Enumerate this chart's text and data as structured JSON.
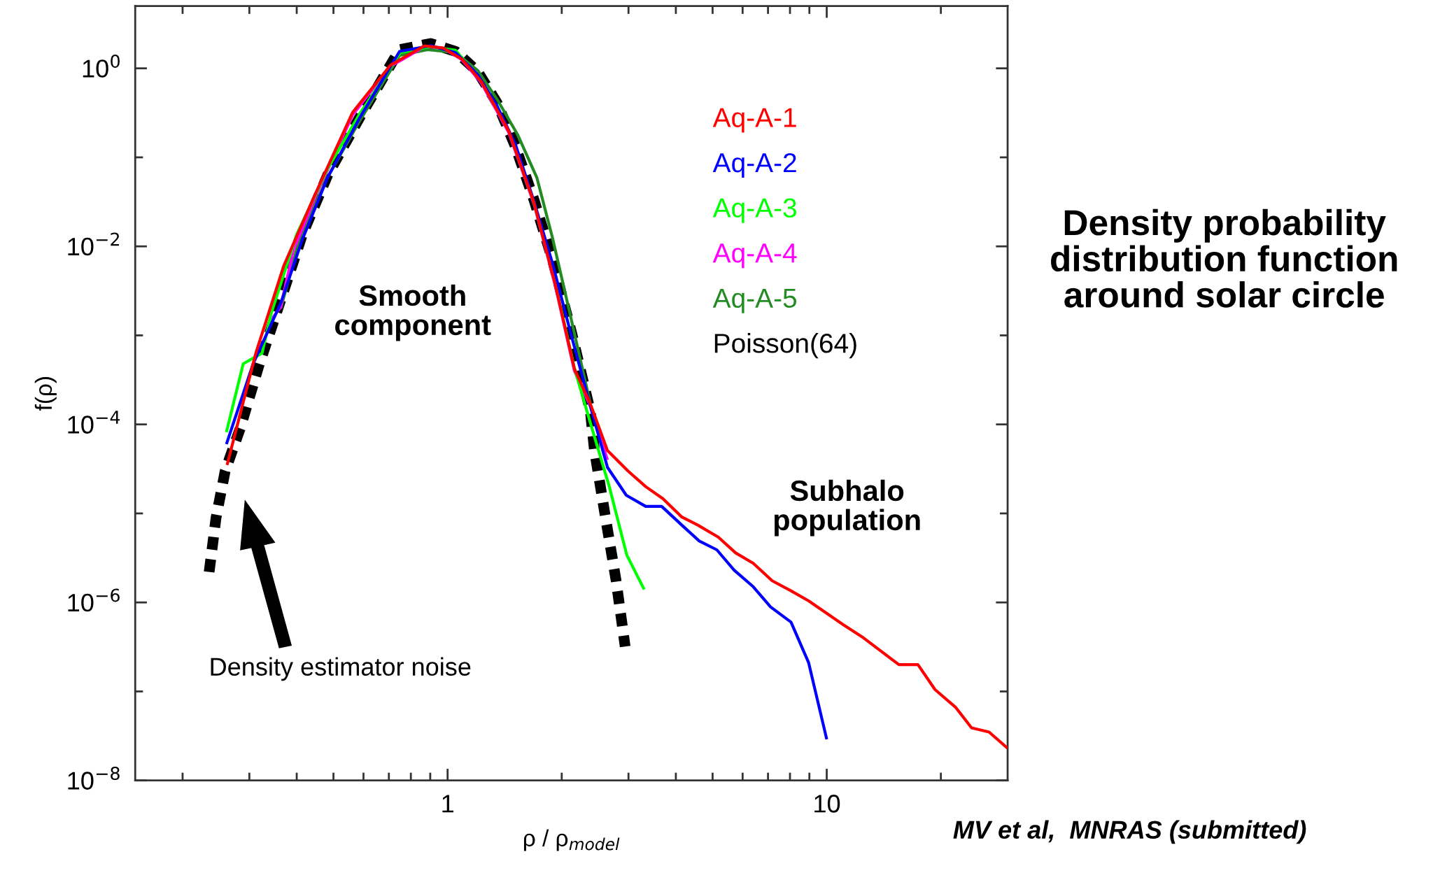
{
  "chart_data": {
    "type": "line",
    "title": "Density probability\ndistribution function\naround solar circle",
    "xlabel": "ρ / ρ$_{model}$",
    "ylabel": "f(ρ)",
    "log": "xy",
    "grid": false,
    "legend": "top right",
    "marker": "none",
    "xlim": [
      0.15,
      30
    ],
    "ylim": [
      1e-08,
      5
    ],
    "xticks": [
      {
        "value": 0.2,
        "label": null
      },
      {
        "value": 0.3,
        "label": null
      },
      {
        "value": 0.4,
        "label": null
      },
      {
        "value": 0.5,
        "label": null
      },
      {
        "value": 0.6,
        "label": null
      },
      {
        "value": 0.7,
        "label": null
      },
      {
        "value": 0.8,
        "label": null
      },
      {
        "value": 0.9,
        "label": null
      },
      1,
      {
        "value": 2,
        "label": null
      },
      {
        "value": 3,
        "label": null
      },
      {
        "value": 4,
        "label": null
      },
      {
        "value": 5,
        "label": null
      },
      {
        "value": 6,
        "label": null
      },
      {
        "value": 7,
        "label": null
      },
      {
        "value": 8,
        "label": null
      },
      {
        "value": 9,
        "label": null
      },
      10,
      {
        "value": 20,
        "label": null
      }
    ],
    "yticks": [
      {
        "value": 1e-08,
        "label": "10$^{−8}$"
      },
      {
        "value": 1e-07,
        "label": null
      },
      {
        "value": 1e-06,
        "label": "10$^{−6}$"
      },
      {
        "value": 1e-05,
        "label": null
      },
      {
        "value": 0.0001,
        "label": "10$^{−4}$"
      },
      {
        "value": 0.001,
        "label": null
      },
      {
        "value": 0.01,
        "label": "10$^{−2}$"
      },
      {
        "value": 0.1,
        "label": null
      },
      {
        "value": 1,
        "label": "10$^{0}$"
      }
    ],
    "series": [
      {
        "name": "Aq-A-1",
        "color": "#ff0000",
        "line_style": "solid",
        "x": [
          0.262,
          0.312,
          0.37,
          0.448,
          0.562,
          0.706,
          0.869,
          0.975,
          1.09,
          1.224,
          1.45,
          1.69,
          1.93,
          2.16,
          2.38,
          2.64,
          2.99,
          3.33,
          3.7,
          4.15,
          4.57,
          5.18,
          5.75,
          6.4,
          7.18,
          8.05,
          8.96,
          11.07,
          12.5,
          15.5,
          17.4,
          19.3,
          21.9,
          24.1,
          26.8,
          30
        ],
        "values": [
          3.5e-05,
          0.00063,
          0.0061,
          0.039,
          0.321,
          1.08,
          1.79,
          1.69,
          1.27,
          0.72,
          0.197,
          0.031,
          0.0035,
          0.00042,
          0.00017,
          5.1e-05,
          3e-05,
          2e-05,
          1.46e-05,
          9.1e-06,
          7.4e-06,
          5.4e-06,
          3.6e-06,
          2.75e-06,
          1.75e-06,
          1.35e-06,
          1.04e-06,
          5.6e-07,
          4e-07,
          2e-07,
          2e-07,
          1.05e-07,
          6.6e-08,
          3.9e-08,
          3.5e-08,
          2.3e-08
        ]
      },
      {
        "name": "Aq-A-2",
        "color": "#0000ff",
        "line_style": "solid",
        "x": [
          0.261,
          0.307,
          0.363,
          0.414,
          0.483,
          0.584,
          0.747,
          0.903,
          1.05,
          1.2,
          1.35,
          1.51,
          1.69,
          1.89,
          2.12,
          2.38,
          2.64,
          2.96,
          3.33,
          3.67,
          4.19,
          4.61,
          5.13,
          5.7,
          6.4,
          7.11,
          8.05,
          8.96,
          10.0
        ],
        "values": [
          6e-05,
          0.00048,
          0.0023,
          0.012,
          0.06,
          0.27,
          1.55,
          1.8,
          1.5,
          0.85,
          0.38,
          0.14,
          0.032,
          0.0065,
          0.001,
          0.00016,
          3.3e-05,
          1.6e-05,
          1.2e-05,
          1.2e-05,
          7.1e-06,
          4.9e-06,
          3.9e-06,
          2.3e-06,
          1.5e-06,
          8.9e-07,
          6e-07,
          2.1e-07,
          2.9e-08
        ]
      },
      {
        "name": "Aq-A-3",
        "color": "#00ff00",
        "line_style": "solid",
        "x": [
          0.261,
          0.289,
          0.324,
          0.343,
          0.4,
          0.483,
          0.584,
          0.75,
          0.9,
          1.05,
          1.22,
          1.45,
          1.69,
          1.93,
          2.16,
          2.39,
          2.67,
          2.97,
          3.3
        ],
        "values": [
          8.2e-05,
          0.00048,
          0.00063,
          0.0018,
          0.0136,
          0.075,
          0.3,
          1.5,
          1.75,
          1.6,
          0.74,
          0.2,
          0.031,
          0.0036,
          0.00043,
          9.8e-05,
          2e-05,
          3.4e-06,
          1.4e-06
        ]
      },
      {
        "name": "Aq-A-4",
        "color": "#ff00ff",
        "line_style": "solid",
        "x": [
          0.343,
          0.363,
          0.392,
          0.448,
          0.562,
          0.706,
          0.869,
          0.975,
          1.09,
          1.224,
          1.45,
          1.69,
          1.93,
          2.16,
          2.38,
          2.64
        ],
        "values": [
          0.0015,
          0.0021,
          0.0091,
          0.036,
          0.3,
          1.05,
          1.75,
          1.68,
          1.25,
          0.7,
          0.19,
          0.03,
          0.0034,
          0.0004,
          0.00016,
          4e-05
        ]
      },
      {
        "name": "Aq-A-5",
        "color": "#228b22",
        "line_style": "solid",
        "x": [
          0.363,
          0.408,
          0.483,
          0.584,
          0.747,
          0.886,
          1.05,
          1.2,
          1.35,
          1.53,
          1.72,
          1.89,
          2.12,
          2.38
        ],
        "values": [
          0.002,
          0.0126,
          0.06,
          0.25,
          1.4,
          1.62,
          1.5,
          0.95,
          0.45,
          0.18,
          0.059,
          0.0126,
          0.0015,
          0.00017
        ]
      },
      {
        "name": "Poisson(64)",
        "color": "#000000",
        "line_style": "dashed",
        "x": [
          0.235,
          0.245,
          0.259,
          0.284,
          0.318,
          0.363,
          0.414,
          0.483,
          0.584,
          0.747,
          0.903,
          1.05,
          1.2,
          1.35,
          1.51,
          1.69,
          1.89,
          2.12,
          2.38,
          2.44,
          2.61,
          2.78,
          2.94
        ],
        "values": [
          2.2e-06,
          8.9e-06,
          3e-05,
          9.1e-05,
          0.00046,
          0.0025,
          0.0136,
          0.0636,
          0.273,
          1.62,
          1.9,
          1.55,
          0.92,
          0.41,
          0.132,
          0.0333,
          0.0071,
          0.0011,
          0.00014,
          5.1e-05,
          8.9e-06,
          1.8e-06,
          3.2e-07
        ]
      }
    ],
    "annotations": [
      "Smooth\ncomponent",
      "Subhalo\npopulation",
      "Density estimator noise",
      "MV et al,  MNRAS (submitted)"
    ]
  }
}
